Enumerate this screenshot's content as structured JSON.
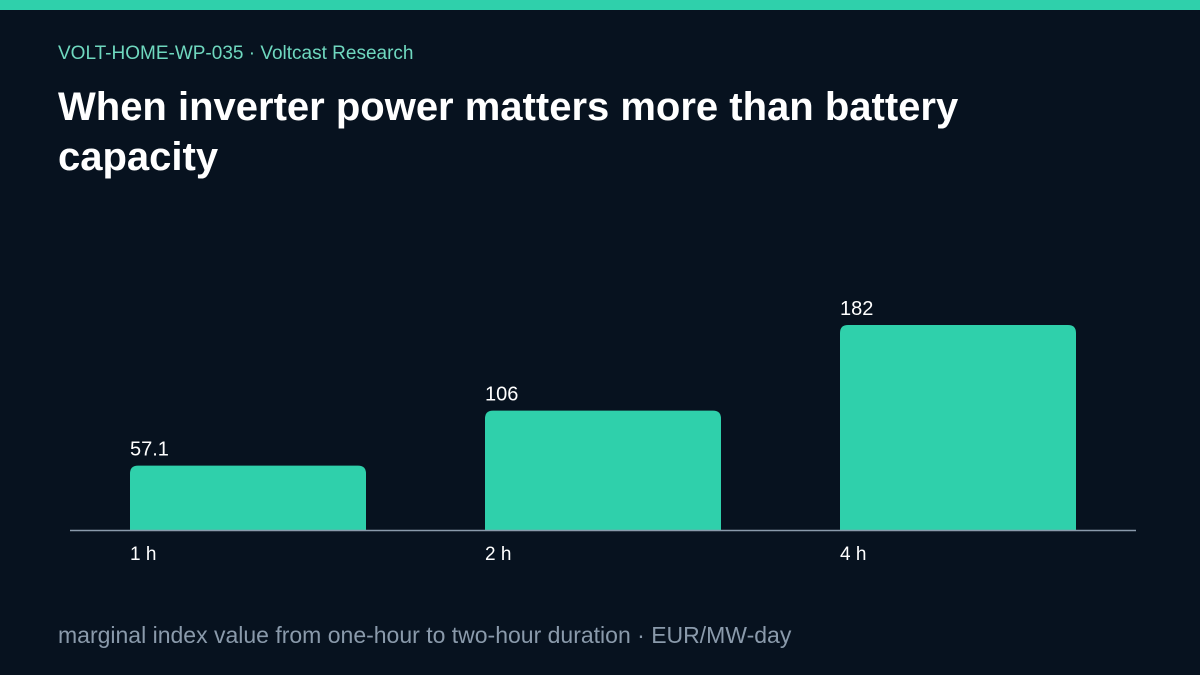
{
  "header": {
    "eyebrow": "VOLT-HOME-WP-035 · Voltcast Research",
    "title": "When inverter power matters more than battery capacity"
  },
  "footer": {
    "note": "marginal index value from one-hour to two-hour duration · EUR/MW-day"
  },
  "colors": {
    "accent": "#2fd0ab",
    "background": "#07121f",
    "axis": "#8a9aab",
    "label": "#ffffff",
    "tick": "#ffffff",
    "eyebrow": "#6fd8bf"
  },
  "chart_data": {
    "type": "bar",
    "categories": [
      "1 h",
      "2 h",
      "4 h"
    ],
    "values": [
      57.1,
      106,
      182
    ],
    "value_labels": [
      "57.1",
      "106",
      "182"
    ],
    "ylim": [
      0,
      182
    ],
    "grid": false,
    "legend": "none"
  }
}
